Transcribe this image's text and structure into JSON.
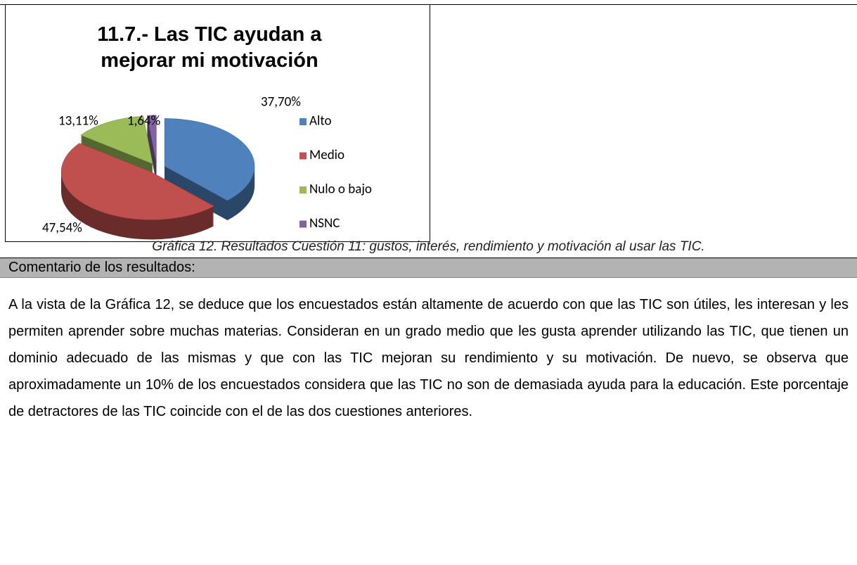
{
  "chart_data": {
    "type": "pie",
    "title": "11.7.- Las TIC ayudan a mejorar mi motivación",
    "categories": [
      "Alto",
      "Medio",
      "Nulo o bajo",
      "NSNC"
    ],
    "values": [
      37.7,
      47.54,
      13.11,
      1.64
    ],
    "value_labels": [
      "37,70%",
      "47,54%",
      "13,11%",
      "1,64%"
    ],
    "colors": [
      "#4f81bd",
      "#c0504d",
      "#9bbb59",
      "#8064a2"
    ],
    "legend": "right"
  },
  "caption": "Gráfica 12. Resultados Cuestión 11: gustos, interés, rendimiento y motivación al usar las TIC.",
  "comment_header": "Comentario de los resultados:",
  "paragraph": "A la vista de la Gráfica 12, se deduce que los encuestados están altamente de acuerdo con que las TIC son útiles, les interesan y les permiten aprender sobre muchas materias. Consideran en un grado medio que les gusta aprender utilizando las TIC, que tienen un dominio adecuado de las mismas y que con las TIC mejoran su rendimiento y su motivación. De nuevo, se observa que aproximadamente un 10% de los encuestados considera que las TIC no son de demasiada ayuda para la educación. Este porcentaje de detractores de las TIC coincide con el de las dos cuestiones anteriores."
}
